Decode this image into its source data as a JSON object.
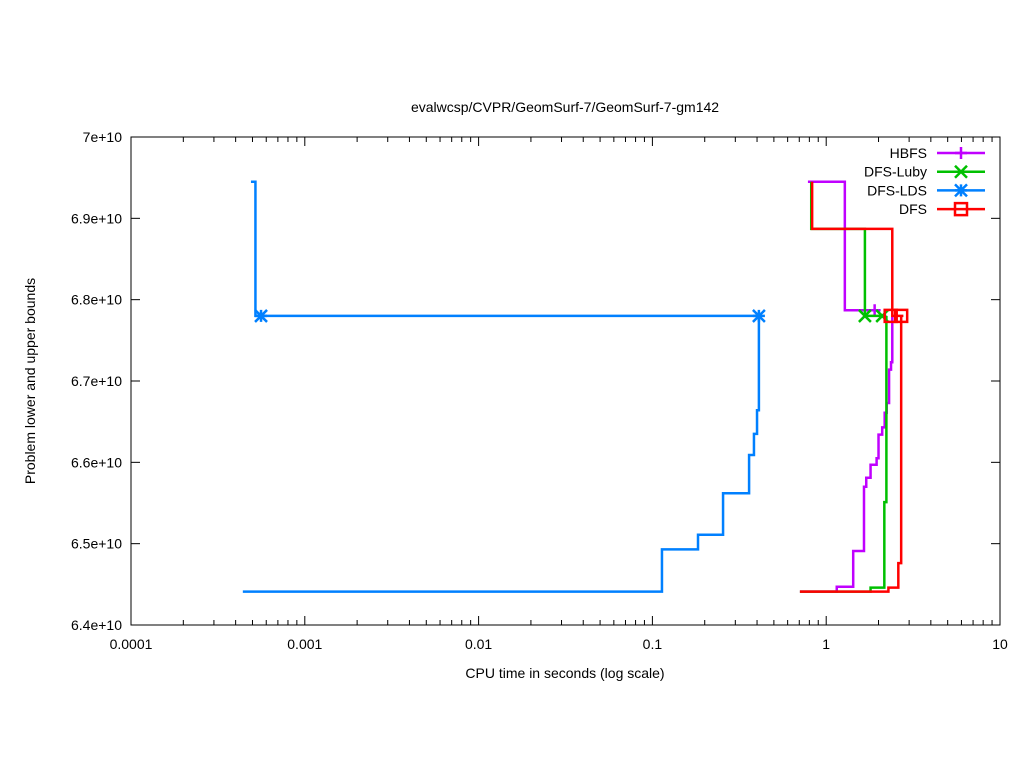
{
  "chart_data": {
    "type": "line",
    "title": "evalwcsp/CVPR/GeomSurf-7/GeomSurf-7-gm142",
    "xlabel": "CPU time in seconds (log scale)",
    "ylabel": "Problem lower and upper bounds",
    "xscale": "log",
    "xlim": [
      0.0001,
      10
    ],
    "ylim": [
      64000000000.0,
      70000000000.0
    ],
    "xticks": [
      {
        "value": 0.0001,
        "label": "0.0001"
      },
      {
        "value": 0.001,
        "label": "0.001"
      },
      {
        "value": 0.01,
        "label": "0.01"
      },
      {
        "value": 0.1,
        "label": "0.1"
      },
      {
        "value": 1,
        "label": "1"
      },
      {
        "value": 10,
        "label": "10"
      }
    ],
    "yticks": [
      {
        "value": 64000000000.0,
        "label": "6.4e+10"
      },
      {
        "value": 65000000000.0,
        "label": "6.5e+10"
      },
      {
        "value": 66000000000.0,
        "label": "6.6e+10"
      },
      {
        "value": 67000000000.0,
        "label": "6.7e+10"
      },
      {
        "value": 68000000000.0,
        "label": "6.8e+10"
      },
      {
        "value": 69000000000.0,
        "label": "6.9e+10"
      },
      {
        "value": 70000000000.0,
        "label": "7e+10"
      }
    ],
    "grid": false,
    "legend_position": "top-right",
    "series": [
      {
        "name": "HBFS",
        "color": "#c000ff",
        "marker": "plus",
        "upper": [
          [
            0.785,
            69450000000.0
          ],
          [
            1.28,
            67870000000.0
          ],
          [
            1.94,
            67870000000.0
          ]
        ],
        "lower": [
          [
            0.706,
            64410000000.0
          ],
          [
            1.15,
            64470000000.0
          ],
          [
            1.43,
            64910000000.0
          ],
          [
            1.65,
            65700000000.0
          ],
          [
            1.7,
            65810000000.0
          ],
          [
            1.8,
            65970000000.0
          ],
          [
            1.95,
            66050000000.0
          ],
          [
            2.0,
            66340000000.0
          ],
          [
            2.1,
            66430000000.0
          ],
          [
            2.17,
            66610000000.0
          ],
          [
            2.23,
            66730000000.0
          ],
          [
            2.3,
            67140000000.0
          ],
          [
            2.36,
            67230000000.0
          ],
          [
            2.4,
            67790000000.0
          ]
        ],
        "markers": [
          [
            1.9,
            67870000000.0
          ]
        ]
      },
      {
        "name": "DFS-Luby",
        "color": "#00c000",
        "marker": "cross",
        "upper": [
          [
            0.82,
            69450000000.0
          ],
          [
            0.82,
            68870000000.0
          ],
          [
            1.67,
            67800000000.0
          ],
          [
            2.22,
            67800000000.0
          ]
        ],
        "lower": [
          [
            0.706,
            64410000000.0
          ],
          [
            1.8,
            64460000000.0
          ],
          [
            2.16,
            65510000000.0
          ],
          [
            2.22,
            67800000000.0
          ]
        ],
        "markers": [
          [
            1.67,
            67800000000.0
          ],
          [
            2.1,
            67800000000.0
          ]
        ]
      },
      {
        "name": "DFS-LDS",
        "color": "#0080ff",
        "marker": "star",
        "upper": [
          [
            0.00049,
            69450000000.0
          ],
          [
            0.00052,
            67800000000.0
          ],
          [
            0.41,
            67800000000.0
          ]
        ],
        "lower": [
          [
            0.00044,
            64410000000.0
          ],
          [
            0.1135,
            64930000000.0
          ],
          [
            0.183,
            65110000000.0
          ],
          [
            0.255,
            65620000000.0
          ],
          [
            0.36,
            66090000000.0
          ],
          [
            0.384,
            66350000000.0
          ],
          [
            0.4,
            66640000000.0
          ],
          [
            0.41,
            67800000000.0
          ]
        ],
        "markers": [
          [
            0.00056,
            67800000000.0
          ],
          [
            0.41,
            67800000000.0
          ]
        ]
      },
      {
        "name": "DFS",
        "color": "#ff0000",
        "marker": "square",
        "upper": [
          [
            0.83,
            69450000000.0
          ],
          [
            0.83,
            68870000000.0
          ],
          [
            2.4,
            67800000000.0
          ],
          [
            2.78,
            67800000000.0
          ]
        ],
        "lower": [
          [
            0.706,
            64410000000.0
          ],
          [
            2.28,
            64460000000.0
          ],
          [
            2.6,
            64760000000.0
          ],
          [
            2.7,
            67800000000.0
          ]
        ],
        "markers": [
          [
            2.35,
            67800000000.0
          ],
          [
            2.7,
            67800000000.0
          ]
        ]
      }
    ]
  }
}
